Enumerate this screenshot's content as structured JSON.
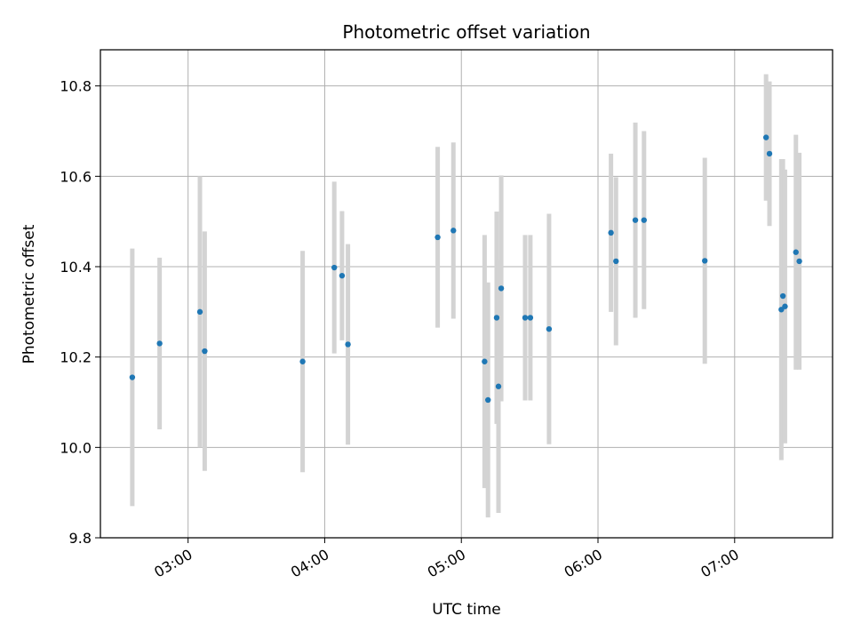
{
  "chart_data": {
    "type": "scatter",
    "title": "Photometric offset variation",
    "xlabel": "UTC time",
    "ylabel": "Photometric offset",
    "x_tick_labels": [
      "03:00",
      "04:00",
      "05:00",
      "06:00",
      "07:00"
    ],
    "x_tick_minutes": [
      180,
      240,
      300,
      360,
      420
    ],
    "y_tick_labels": [
      "9.8",
      "10.0",
      "10.2",
      "10.4",
      "10.6",
      "10.8"
    ],
    "y_ticks": [
      9.8,
      10.0,
      10.2,
      10.4,
      10.6,
      10.8
    ],
    "xlim_minutes": [
      141.5,
      463
    ],
    "ylim": [
      9.8,
      10.88
    ],
    "grid": true,
    "x_unit": "minutes after 00:00 UTC",
    "series": [
      {
        "color": "#1f77b4",
        "errorbar_color": "#d3d3d3",
        "points": [
          {
            "x": 155.5,
            "y": 10.155,
            "err": 0.285
          },
          {
            "x": 167.5,
            "y": 10.23,
            "err": 0.19
          },
          {
            "x": 185.2,
            "y": 10.3,
            "err": 0.3
          },
          {
            "x": 187.3,
            "y": 10.213,
            "err": 0.265
          },
          {
            "x": 230.3,
            "y": 10.19,
            "err": 0.245
          },
          {
            "x": 244.2,
            "y": 10.398,
            "err": 0.19
          },
          {
            "x": 247.6,
            "y": 10.38,
            "err": 0.143
          },
          {
            "x": 250.2,
            "y": 10.228,
            "err": 0.222
          },
          {
            "x": 289.6,
            "y": 10.465,
            "err": 0.2
          },
          {
            "x": 296.5,
            "y": 10.48,
            "err": 0.195
          },
          {
            "x": 310.2,
            "y": 10.19,
            "err": 0.28
          },
          {
            "x": 311.7,
            "y": 10.105,
            "err": 0.26
          },
          {
            "x": 315.5,
            "y": 10.287,
            "err": 0.235
          },
          {
            "x": 316.3,
            "y": 10.135,
            "err": 0.28
          },
          {
            "x": 317.5,
            "y": 10.352,
            "err": 0.25
          },
          {
            "x": 328.0,
            "y": 10.287,
            "err": 0.183
          },
          {
            "x": 330.3,
            "y": 10.287,
            "err": 0.183
          },
          {
            "x": 338.5,
            "y": 10.262,
            "err": 0.255
          },
          {
            "x": 365.7,
            "y": 10.475,
            "err": 0.175
          },
          {
            "x": 367.9,
            "y": 10.412,
            "err": 0.186
          },
          {
            "x": 376.4,
            "y": 10.503,
            "err": 0.216
          },
          {
            "x": 380.2,
            "y": 10.503,
            "err": 0.197
          },
          {
            "x": 406.9,
            "y": 10.413,
            "err": 0.228
          },
          {
            "x": 433.8,
            "y": 10.686,
            "err": 0.14
          },
          {
            "x": 435.3,
            "y": 10.65,
            "err": 0.16
          },
          {
            "x": 440.5,
            "y": 10.305,
            "err": 0.333
          },
          {
            "x": 441.2,
            "y": 10.335,
            "err": 0.303
          },
          {
            "x": 442.1,
            "y": 10.312,
            "err": 0.303
          },
          {
            "x": 446.9,
            "y": 10.432,
            "err": 0.26
          },
          {
            "x": 448.4,
            "y": 10.412,
            "err": 0.24
          }
        ]
      }
    ]
  }
}
